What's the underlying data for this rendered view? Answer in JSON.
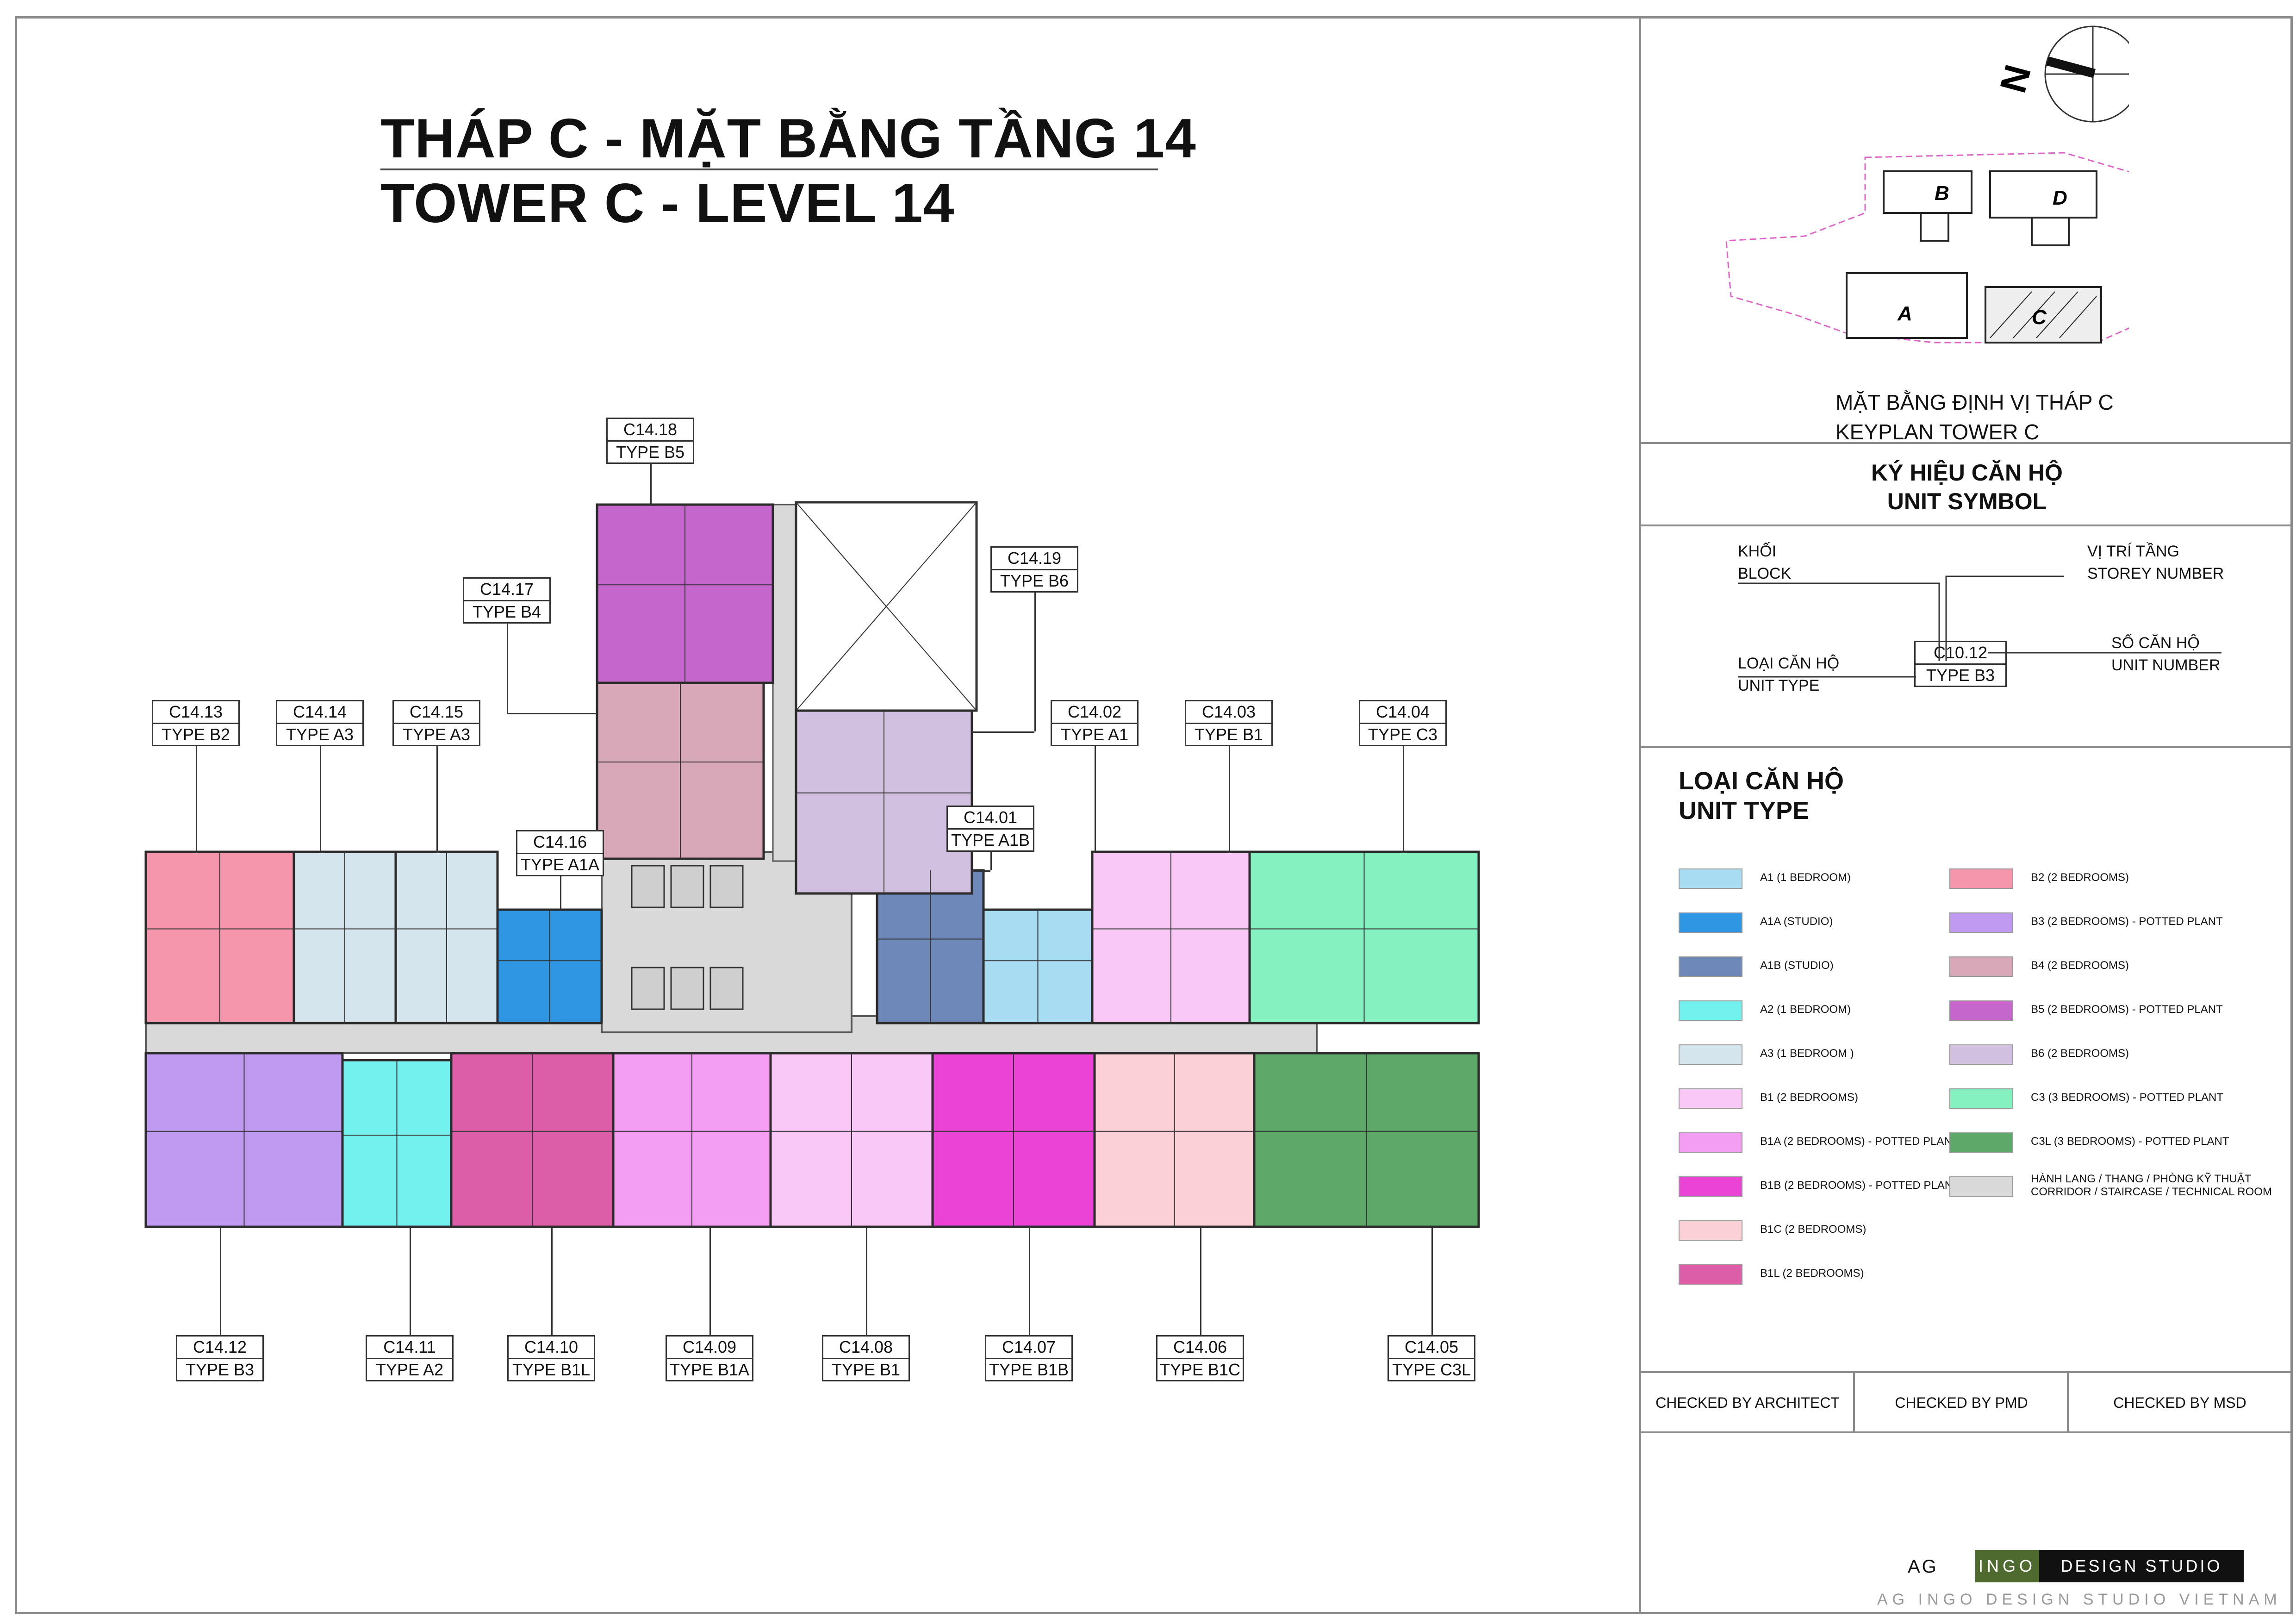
{
  "title": {
    "line1": "THÁP C - MẶT BẰNG TẦNG 14",
    "line2": "TOWER C - LEVEL 14"
  },
  "keyplan": {
    "blocks": [
      "A",
      "B",
      "C",
      "D"
    ],
    "compass": "N",
    "caption_vi": "MẶT BẰNG ĐỊNH VỊ THÁP C",
    "caption_en": "KEYPLAN TOWER C"
  },
  "unit_symbol": {
    "title_vi": "KÝ HIỆU CĂN HỘ",
    "title_en": "UNIT SYMBOL",
    "block_vi": "KHỐI",
    "block_en": "BLOCK",
    "storey_vi": "VỊ TRÍ TẦNG",
    "storey_en": "STOREY NUMBER",
    "type_vi": "LOẠI CĂN HỘ",
    "type_en": "UNIT TYPE",
    "number_vi": "SỐ CĂN HỘ",
    "number_en": "UNIT NUMBER",
    "sample_code": "C10.12",
    "sample_type": "TYPE B3"
  },
  "legend": {
    "title_vi": "LOẠI CĂN HỘ",
    "title_en": "UNIT TYPE",
    "left": [
      {
        "color": "#a8dcf3",
        "label": "A1 (1 BEDROOM)"
      },
      {
        "color": "#2f96e4",
        "label": "A1A (STUDIO)"
      },
      {
        "color": "#6e89b9",
        "label": "A1B (STUDIO)"
      },
      {
        "color": "#72f1ee",
        "label": "A2 (1 BEDROOM)"
      },
      {
        "color": "#d4e5ee",
        "label": "A3 (1 BEDROOM )"
      },
      {
        "color": "#fac8f6",
        "label": "B1 (2 BEDROOMS)"
      },
      {
        "color": "#f39ef3",
        "label": "B1A (2 BEDROOMS) - POTTED PLANT"
      },
      {
        "color": "#ea43d6",
        "label": "B1B (2 BEDROOMS) - POTTED PLANT"
      },
      {
        "color": "#fbd0d7",
        "label": "B1C (2 BEDROOMS)"
      },
      {
        "color": "#dc5ea9",
        "label": "B1L (2 BEDROOMS)"
      }
    ],
    "right": [
      {
        "color": "#f596ac",
        "label": "B2 (2 BEDROOMS)"
      },
      {
        "color": "#c09af0",
        "label": "B3 (2 BEDROOMS) - POTTED PLANT"
      },
      {
        "color": "#d8a8b8",
        "label": "B4 (2 BEDROOMS)"
      },
      {
        "color": "#c466cc",
        "label": "B5 (2 BEDROOMS) - POTTED PLANT"
      },
      {
        "color": "#d2c0e0",
        "label": "B6 (2 BEDROOMS)"
      },
      {
        "color": "#85f0c0",
        "label": "C3 (3 BEDROOMS) - POTTED PLANT"
      },
      {
        "color": "#5ea86a",
        "label": "C3L (3 BEDROOMS) - POTTED PLANT"
      },
      {
        "color": "#d9d9d9",
        "label": "HÀNH LANG / THANG / PHÒNG KỸ THUẬT",
        "label2": "CORRIDOR / STAIRCASE / TECHNICAL ROOM"
      }
    ]
  },
  "units": [
    {
      "code": "C14.01",
      "type": "TYPE A1B",
      "color": "#6e89b9"
    },
    {
      "code": "C14.02",
      "type": "TYPE A1",
      "color": "#a8dcf3"
    },
    {
      "code": "C14.03",
      "type": "TYPE B1",
      "color": "#fac8f6"
    },
    {
      "code": "C14.04",
      "type": "TYPE C3",
      "color": "#85f0c0"
    },
    {
      "code": "C14.05",
      "type": "TYPE C3L",
      "color": "#5ea86a"
    },
    {
      "code": "C14.06",
      "type": "TYPE B1C",
      "color": "#fbd0d7"
    },
    {
      "code": "C14.07",
      "type": "TYPE B1B",
      "color": "#ea43d6"
    },
    {
      "code": "C14.08",
      "type": "TYPE B1",
      "color": "#fac8f6"
    },
    {
      "code": "C14.09",
      "type": "TYPE B1A",
      "color": "#f39ef3"
    },
    {
      "code": "C14.10",
      "type": "TYPE B1L",
      "color": "#dc5ea9"
    },
    {
      "code": "C14.11",
      "type": "TYPE A2",
      "color": "#72f1ee"
    },
    {
      "code": "C14.12",
      "type": "TYPE B3",
      "color": "#c09af0"
    },
    {
      "code": "C14.13",
      "type": "TYPE B2",
      "color": "#f596ac"
    },
    {
      "code": "C14.14",
      "type": "TYPE A3",
      "color": "#d4e5ee"
    },
    {
      "code": "C14.15",
      "type": "TYPE A3",
      "color": "#d4e5ee"
    },
    {
      "code": "C14.16",
      "type": "TYPE A1A",
      "color": "#2f96e4"
    },
    {
      "code": "C14.17",
      "type": "TYPE B4",
      "color": "#d8a8b8"
    },
    {
      "code": "C14.18",
      "type": "TYPE B5",
      "color": "#c466cc"
    },
    {
      "code": "C14.19",
      "type": "TYPE B6",
      "color": "#d2c0e0"
    }
  ],
  "checks": {
    "architect": "CHECKED BY ARCHITECT",
    "pmd": "CHECKED BY PMD",
    "msd": "CHECKED BY MSD"
  },
  "brand": {
    "ag": "AG",
    "ingo": "INGO",
    "studio": "DESIGN STUDIO",
    "footer": "AG INGO DESIGN STUDIO VIETNAM"
  }
}
